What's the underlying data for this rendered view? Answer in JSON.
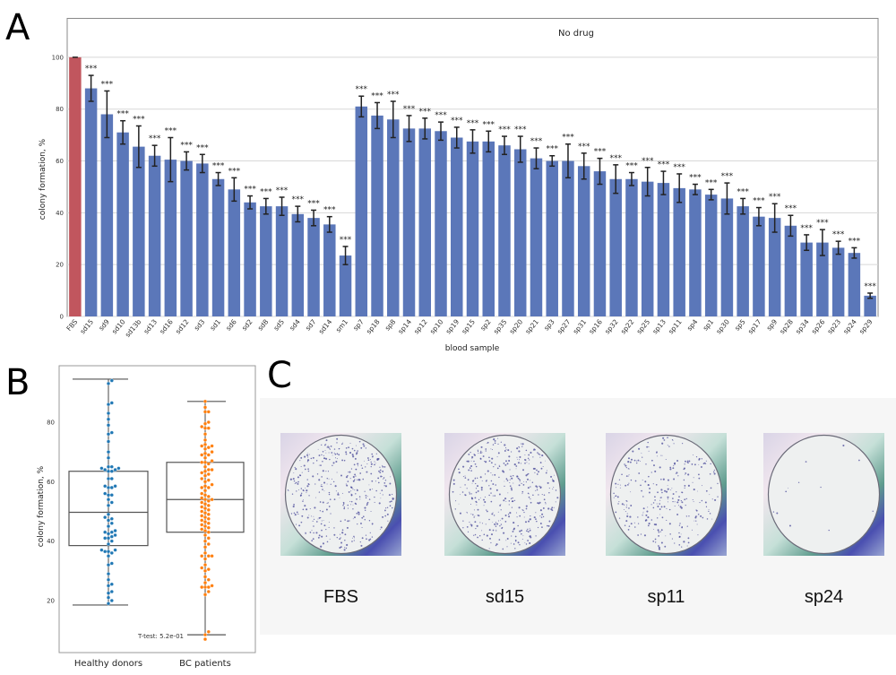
{
  "panels": {
    "a": "A",
    "b": "B",
    "c": "C"
  },
  "chart_data": [
    {
      "type": "bar",
      "title": "No drug",
      "xlabel": "blood sample",
      "ylabel": "colony formation, %",
      "ylim": [
        0,
        115
      ],
      "yticks": [
        0,
        20,
        40,
        60,
        80,
        100
      ],
      "grid": true,
      "categories": [
        "FBS",
        "sd15",
        "sd9",
        "sd10",
        "sd13b",
        "sd13",
        "sd16",
        "sd12",
        "sd3",
        "sd1",
        "sd6",
        "sd2",
        "sd8",
        "sd5",
        "sd4",
        "sd7",
        "sd14",
        "sm1",
        "sp7",
        "sp18",
        "sp8",
        "sp14",
        "sp12",
        "sp10",
        "sp19",
        "sp15",
        "sp2",
        "sp35",
        "sp20",
        "sp21",
        "sp3",
        "sp27",
        "sp31",
        "sp16",
        "sp32",
        "sp22",
        "sp25",
        "sp13",
        "sp11",
        "sp4",
        "sp1",
        "sp30",
        "sp5",
        "sp17",
        "sp9",
        "sp28",
        "sp34",
        "sp26",
        "sp23",
        "sp24",
        "sp29"
      ],
      "values": [
        100,
        88,
        78,
        71,
        65.5,
        62,
        60.5,
        60,
        59,
        53,
        49,
        44,
        42.5,
        42.5,
        39.5,
        38,
        35.5,
        23.5,
        81,
        77.5,
        76,
        72.5,
        72.5,
        71.5,
        69,
        67.5,
        67.5,
        66,
        64.5,
        61,
        60,
        60,
        58,
        56,
        53,
        53,
        52,
        51.5,
        49.5,
        49,
        47,
        45.5,
        42.5,
        38.5,
        38,
        35,
        28.5,
        28.5,
        26.5,
        24.5,
        8
      ],
      "errors": [
        0,
        5,
        9,
        4.5,
        8,
        4,
        8.5,
        3.5,
        3.5,
        2.5,
        4.5,
        2.5,
        3,
        3.5,
        3,
        3,
        3,
        3.5,
        4,
        5,
        7,
        5,
        4,
        3.5,
        4,
        4.5,
        4,
        3.5,
        5,
        4,
        2,
        6.5,
        5,
        5,
        5.5,
        2.5,
        5.5,
        4.5,
        5.5,
        2,
        2,
        6,
        3,
        3.5,
        5.5,
        4,
        3,
        5,
        2.5,
        2,
        1
      ],
      "annotations": [
        "",
        "***",
        "***",
        "***",
        "***",
        "***",
        "***",
        "***",
        "***",
        "***",
        "***",
        "***",
        "***",
        "***",
        "***",
        "***",
        "***",
        "***",
        "***",
        "***",
        "***",
        "***",
        "***",
        "***",
        "***",
        "***",
        "***",
        "***",
        "***",
        "***",
        "***",
        "***",
        "***",
        "***",
        "***",
        "***",
        "***",
        "***",
        "***",
        "***",
        "***",
        "***",
        "***",
        "***",
        "***",
        "***",
        "***",
        "***",
        "***",
        "***",
        "***"
      ],
      "colors": {
        "control": "#c1565e",
        "sample": "#5b77b9",
        "errorbar": "#222222"
      }
    },
    {
      "type": "box",
      "ylabel": "colony formation, %",
      "ylim": [
        2.5,
        99
      ],
      "yticks": [
        20,
        40,
        60,
        80
      ],
      "categories": [
        "Healthy donors",
        "BC patients"
      ],
      "boxes": [
        {
          "q1": 38.5,
          "median": 49.7,
          "q3": 63.5,
          "whisker_low": 18.5,
          "whisker_high": 94.5
        },
        {
          "q1": 43,
          "median": 54,
          "q3": 66.5,
          "whisker_low": 8.5,
          "whisker_high": 87
        }
      ],
      "points": [
        [
          94,
          93,
          86,
          86.5,
          83,
          81,
          79,
          76.5,
          76,
          73.5,
          70,
          68,
          65,
          65,
          64.5,
          64.5,
          64,
          64,
          63.5,
          63.5,
          61,
          61,
          58.5,
          58.5,
          58,
          58,
          56,
          55.5,
          55.5,
          54,
          53,
          52,
          49,
          48,
          47.5,
          47,
          46,
          45,
          43.5,
          43,
          43,
          42.5,
          42,
          41.5,
          41,
          41,
          40,
          39,
          37,
          37,
          36.5,
          36.5,
          36,
          35,
          32.5,
          32,
          29,
          27,
          25.5,
          25,
          23,
          22.5,
          21,
          20,
          19
        ],
        [
          87,
          85,
          83.5,
          83.5,
          80,
          79.5,
          78.5,
          78,
          78,
          76,
          74,
          72.5,
          72,
          72,
          71.5,
          71,
          70,
          69.5,
          69,
          69,
          68,
          67,
          66.5,
          66.5,
          66,
          65,
          64,
          64,
          63.5,
          63,
          62.5,
          62,
          61,
          60.5,
          60,
          59,
          58.5,
          58,
          58,
          57,
          56,
          55.5,
          55,
          54.5,
          54,
          54,
          53.5,
          53,
          52.5,
          52,
          51.5,
          51,
          50.5,
          50,
          49.5,
          49,
          48.5,
          48,
          47.5,
          47,
          46.5,
          46,
          45.5,
          45,
          44.5,
          44,
          43.5,
          43,
          42,
          41,
          40,
          39,
          38,
          36,
          35,
          35,
          35,
          34,
          32,
          31,
          30.5,
          30,
          28,
          27,
          26,
          25,
          24.5,
          24.5,
          24.5,
          23,
          22,
          9.5,
          8.5,
          7
        ]
      ],
      "annotation": "T-test: 5.2e-01",
      "colors": {
        "Healthy donors": "#1f77b4",
        "BC patients": "#ff7f0e"
      }
    }
  ],
  "photos": {
    "items": [
      {
        "label": "FBS",
        "colony_density": "high"
      },
      {
        "label": "sd15",
        "colony_density": "high"
      },
      {
        "label": "sp11",
        "colony_density": "medium"
      },
      {
        "label": "sp24",
        "colony_density": "very low"
      }
    ]
  }
}
